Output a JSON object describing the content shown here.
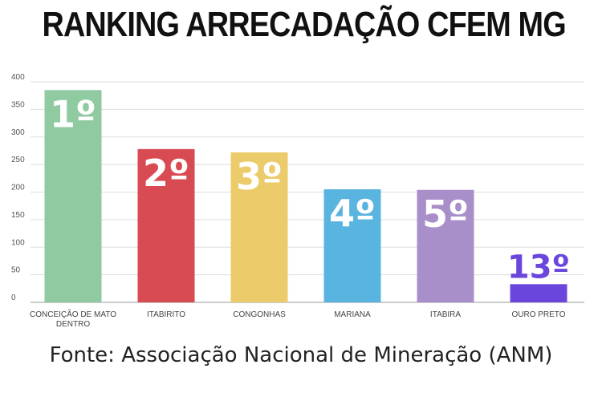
{
  "title": "RANKING ARRECADAÇÃO CFEM MG",
  "source": "Fonte: Associação Nacional de Mineração (ANM)",
  "chart_data": {
    "type": "bar",
    "categories": [
      "CONCEIÇÃO DE MATO DENTRO",
      "ITABIRITO",
      "CONGONHAS",
      "MARIANA",
      "ITABIRA",
      "OURO PRETO"
    ],
    "values": [
      385,
      278,
      272,
      205,
      204,
      33
    ],
    "rank_labels": [
      "1º",
      "2º",
      "3º",
      "4º",
      "5º",
      "13º"
    ],
    "colors": [
      "#8fcaa1",
      "#d94b52",
      "#eccb6a",
      "#5ab4e0",
      "#a98fca",
      "#6a46dc"
    ],
    "ylim": [
      0,
      400
    ],
    "yticks": [
      0,
      50,
      100,
      150,
      200,
      250,
      300,
      350,
      400
    ],
    "grid": true,
    "legend": "none"
  }
}
